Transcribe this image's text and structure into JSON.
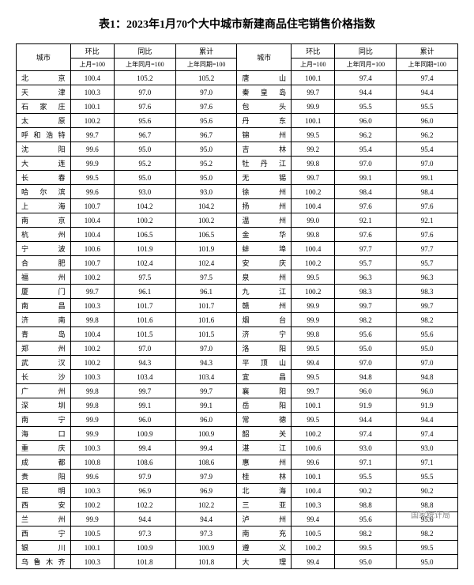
{
  "title": "表1：2023年1月70个大中城市新建商品住宅销售价格指数",
  "headers": {
    "city": "城市",
    "mom": "环比",
    "yoy": "同比",
    "cum": "累计",
    "mom_sub": "上月=100",
    "yoy_sub": "上年同月=100",
    "cum_sub": "上年同期=100"
  },
  "left": [
    {
      "c": "北　　京",
      "m": "100.4",
      "y": "105.2",
      "u": "105.2"
    },
    {
      "c": "天　　津",
      "m": "100.3",
      "y": "97.0",
      "u": "97.0"
    },
    {
      "c": "石 家 庄",
      "m": "100.1",
      "y": "97.6",
      "u": "97.6"
    },
    {
      "c": "太　　原",
      "m": "100.2",
      "y": "95.6",
      "u": "95.6"
    },
    {
      "c": "呼和浩特",
      "m": "99.7",
      "y": "96.7",
      "u": "96.7"
    },
    {
      "c": "沈　　阳",
      "m": "99.6",
      "y": "95.0",
      "u": "95.0"
    },
    {
      "c": "大　　连",
      "m": "99.9",
      "y": "95.2",
      "u": "95.2"
    },
    {
      "c": "长　　春",
      "m": "99.5",
      "y": "95.0",
      "u": "95.0"
    },
    {
      "c": "哈 尔 滨",
      "m": "99.6",
      "y": "93.0",
      "u": "93.0"
    },
    {
      "c": "上　　海",
      "m": "100.7",
      "y": "104.2",
      "u": "104.2"
    },
    {
      "c": "南　　京",
      "m": "100.4",
      "y": "100.2",
      "u": "100.2"
    },
    {
      "c": "杭　　州",
      "m": "100.4",
      "y": "106.5",
      "u": "106.5"
    },
    {
      "c": "宁　　波",
      "m": "100.6",
      "y": "101.9",
      "u": "101.9"
    },
    {
      "c": "合　　肥",
      "m": "100.7",
      "y": "102.4",
      "u": "102.4"
    },
    {
      "c": "福　　州",
      "m": "100.2",
      "y": "97.5",
      "u": "97.5"
    },
    {
      "c": "厦　　门",
      "m": "99.7",
      "y": "96.1",
      "u": "96.1"
    },
    {
      "c": "南　　昌",
      "m": "100.3",
      "y": "101.7",
      "u": "101.7"
    },
    {
      "c": "济　　南",
      "m": "99.8",
      "y": "101.6",
      "u": "101.6"
    },
    {
      "c": "青　　岛",
      "m": "100.4",
      "y": "101.5",
      "u": "101.5"
    },
    {
      "c": "郑　　州",
      "m": "100.2",
      "y": "97.0",
      "u": "97.0"
    },
    {
      "c": "武　　汉",
      "m": "100.2",
      "y": "94.3",
      "u": "94.3"
    },
    {
      "c": "长　　沙",
      "m": "100.3",
      "y": "103.4",
      "u": "103.4"
    },
    {
      "c": "广　　州",
      "m": "99.8",
      "y": "99.7",
      "u": "99.7"
    },
    {
      "c": "深　　圳",
      "m": "99.8",
      "y": "99.1",
      "u": "99.1"
    },
    {
      "c": "南　　宁",
      "m": "99.9",
      "y": "96.0",
      "u": "96.0"
    },
    {
      "c": "海　　口",
      "m": "99.9",
      "y": "100.9",
      "u": "100.9"
    },
    {
      "c": "重　　庆",
      "m": "100.3",
      "y": "99.4",
      "u": "99.4"
    },
    {
      "c": "成　　都",
      "m": "100.8",
      "y": "108.6",
      "u": "108.6"
    },
    {
      "c": "贵　　阳",
      "m": "99.6",
      "y": "97.9",
      "u": "97.9"
    },
    {
      "c": "昆　　明",
      "m": "100.3",
      "y": "96.9",
      "u": "96.9"
    },
    {
      "c": "西　　安",
      "m": "100.2",
      "y": "102.2",
      "u": "102.2"
    },
    {
      "c": "兰　　州",
      "m": "99.9",
      "y": "94.4",
      "u": "94.4"
    },
    {
      "c": "西　　宁",
      "m": "100.5",
      "y": "97.3",
      "u": "97.3"
    },
    {
      "c": "银　　川",
      "m": "100.1",
      "y": "100.9",
      "u": "100.9"
    },
    {
      "c": "乌鲁木齐",
      "m": "100.3",
      "y": "101.8",
      "u": "101.8"
    }
  ],
  "right": [
    {
      "c": "唐　　山",
      "m": "100.1",
      "y": "97.4",
      "u": "97.4"
    },
    {
      "c": "秦 皇 岛",
      "m": "99.7",
      "y": "94.4",
      "u": "94.4"
    },
    {
      "c": "包　　头",
      "m": "99.9",
      "y": "95.5",
      "u": "95.5"
    },
    {
      "c": "丹　　东",
      "m": "100.1",
      "y": "96.0",
      "u": "96.0"
    },
    {
      "c": "锦　　州",
      "m": "99.5",
      "y": "96.2",
      "u": "96.2"
    },
    {
      "c": "吉　　林",
      "m": "99.2",
      "y": "95.4",
      "u": "95.4"
    },
    {
      "c": "牡 丹 江",
      "m": "99.8",
      "y": "97.0",
      "u": "97.0"
    },
    {
      "c": "无　　锡",
      "m": "99.7",
      "y": "99.1",
      "u": "99.1"
    },
    {
      "c": "徐　　州",
      "m": "100.2",
      "y": "98.4",
      "u": "98.4"
    },
    {
      "c": "扬　　州",
      "m": "100.4",
      "y": "97.6",
      "u": "97.6"
    },
    {
      "c": "温　　州",
      "m": "99.0",
      "y": "92.1",
      "u": "92.1"
    },
    {
      "c": "金　　华",
      "m": "99.8",
      "y": "97.6",
      "u": "97.6"
    },
    {
      "c": "蚌　　埠",
      "m": "100.4",
      "y": "97.7",
      "u": "97.7"
    },
    {
      "c": "安　　庆",
      "m": "100.2",
      "y": "95.7",
      "u": "95.7"
    },
    {
      "c": "泉　　州",
      "m": "99.5",
      "y": "96.3",
      "u": "96.3"
    },
    {
      "c": "九　　江",
      "m": "100.2",
      "y": "98.3",
      "u": "98.3"
    },
    {
      "c": "赣　　州",
      "m": "99.9",
      "y": "99.7",
      "u": "99.7"
    },
    {
      "c": "烟　　台",
      "m": "99.9",
      "y": "98.2",
      "u": "98.2"
    },
    {
      "c": "济　　宁",
      "m": "99.8",
      "y": "95.6",
      "u": "95.6"
    },
    {
      "c": "洛　　阳",
      "m": "99.5",
      "y": "95.0",
      "u": "95.0"
    },
    {
      "c": "平 顶 山",
      "m": "99.4",
      "y": "97.0",
      "u": "97.0"
    },
    {
      "c": "宜　　昌",
      "m": "99.5",
      "y": "94.8",
      "u": "94.8"
    },
    {
      "c": "襄　　阳",
      "m": "99.7",
      "y": "96.0",
      "u": "96.0"
    },
    {
      "c": "岳　　阳",
      "m": "100.1",
      "y": "91.9",
      "u": "91.9"
    },
    {
      "c": "常　　德",
      "m": "99.5",
      "y": "94.4",
      "u": "94.4"
    },
    {
      "c": "韶　　关",
      "m": "100.2",
      "y": "97.4",
      "u": "97.4"
    },
    {
      "c": "湛　　江",
      "m": "100.6",
      "y": "93.0",
      "u": "93.0"
    },
    {
      "c": "惠　　州",
      "m": "99.6",
      "y": "97.1",
      "u": "97.1"
    },
    {
      "c": "桂　　林",
      "m": "100.1",
      "y": "95.5",
      "u": "95.5"
    },
    {
      "c": "北　　海",
      "m": "100.4",
      "y": "90.2",
      "u": "90.2"
    },
    {
      "c": "三　　亚",
      "m": "100.3",
      "y": "98.8",
      "u": "98.8"
    },
    {
      "c": "泸　　州",
      "m": "99.4",
      "y": "95.6",
      "u": "95.6"
    },
    {
      "c": "南　　充",
      "m": "100.5",
      "y": "98.2",
      "u": "98.2"
    },
    {
      "c": "遵　　义",
      "m": "100.2",
      "y": "99.5",
      "u": "99.5"
    },
    {
      "c": "大　　理",
      "m": "99.4",
      "y": "95.0",
      "u": "95.0"
    }
  ],
  "watermark": "国家统计局"
}
